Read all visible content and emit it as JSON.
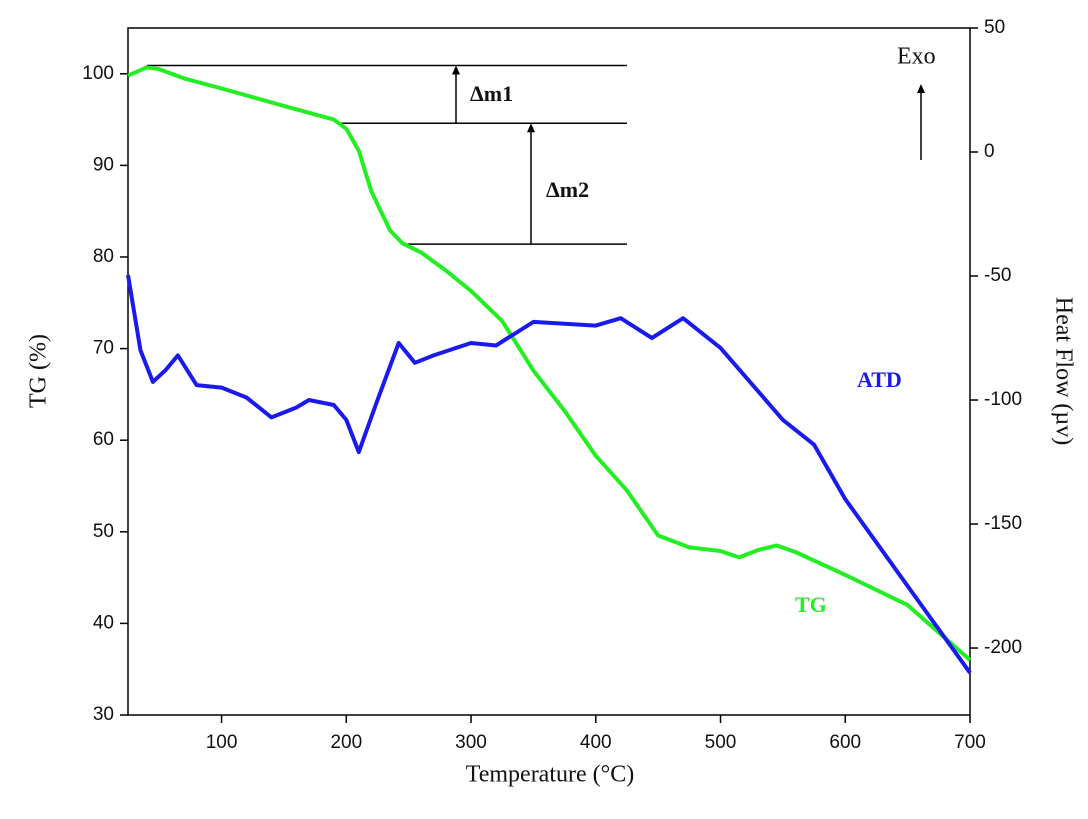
{
  "chart_data": {
    "type": "line",
    "x_label": "Temperature (°C)",
    "y_label": "TG (%)",
    "y2_label": "Heat Flow (µv)",
    "xlim": [
      25,
      700
    ],
    "xticks": [
      100,
      200,
      300,
      400,
      500,
      600,
      700
    ],
    "ylim": [
      30,
      105
    ],
    "yticks": [
      30,
      40,
      50,
      60,
      70,
      80,
      90,
      100
    ],
    "y2lim": [
      -227,
      50
    ],
    "y2ticks": [
      -200,
      -150,
      -100,
      -50,
      0,
      50
    ],
    "series": [
      {
        "name": "TG",
        "color": "#22ee22",
        "axis": "y",
        "x": [
          25,
          40,
          50,
          70,
          100,
          150,
          190,
          200,
          210,
          220,
          235,
          245,
          260,
          280,
          300,
          325,
          350,
          375,
          400,
          425,
          450,
          475,
          500,
          515,
          530,
          545,
          560,
          600,
          650,
          700
        ],
        "values": [
          99.8,
          100.7,
          100.5,
          99.5,
          98.4,
          96.5,
          95,
          94,
          91.6,
          87.2,
          82.9,
          81.5,
          80.5,
          78.5,
          76.3,
          73,
          67.6,
          63.2,
          58.3,
          54.5,
          49.6,
          48.3,
          47.9,
          47.2,
          48,
          48.5,
          47.8,
          45.3,
          42,
          36
        ]
      },
      {
        "name": "ATD",
        "color": "#1a1aee",
        "axis": "y2",
        "x": [
          25,
          35,
          45,
          55,
          65,
          80,
          100,
          120,
          140,
          160,
          170,
          190,
          200,
          210,
          225,
          242,
          255,
          270,
          300,
          320,
          350,
          400,
          420,
          445,
          470,
          500,
          550,
          575,
          600,
          650,
          700
        ],
        "values": [
          -49.6,
          -80,
          -92.7,
          -88,
          -82,
          -94,
          -95,
          -99,
          -107,
          -103,
          -100,
          -102,
          -108,
          -121,
          -100,
          -77,
          -85,
          -82,
          -77,
          -78,
          -68.5,
          -70,
          -67,
          -75,
          -67,
          -79,
          -108,
          -118,
          -140,
          -175,
          -210
        ]
      }
    ],
    "reference_lines": [
      {
        "y": 100.9,
        "x": [
          40,
          425
        ]
      },
      {
        "y": 94.6,
        "x": [
          195,
          425
        ]
      },
      {
        "y": 81.4,
        "x": [
          245,
          425
        ]
      }
    ],
    "annotations": [
      "Δm1",
      "Δm2",
      "Exo"
    ]
  }
}
